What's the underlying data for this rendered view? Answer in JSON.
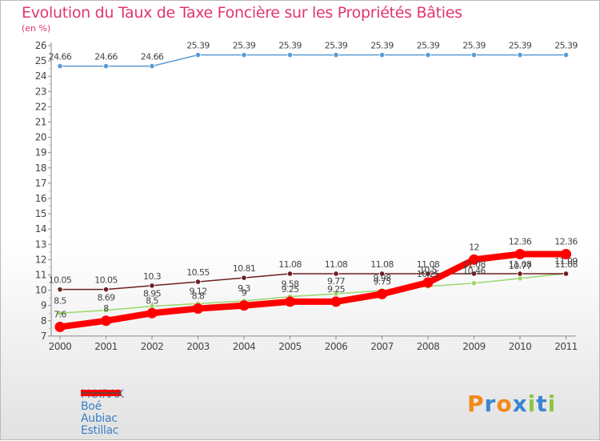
{
  "chart_data": {
    "type": "line",
    "title": "Evolution du Taux de Taxe Foncière sur les Propriétés Bâties",
    "ylabel": "(en %)",
    "xlabel": "",
    "categories": [
      "2000",
      "2001",
      "2002",
      "2003",
      "2004",
      "2005",
      "2006",
      "2007",
      "2008",
      "2009",
      "2010",
      "2011"
    ],
    "ylim": [
      7,
      26
    ],
    "yticks": [
      "7",
      "8",
      "9",
      "10",
      "11",
      "12",
      "13",
      "14",
      "15",
      "16",
      "17",
      "18",
      "19",
      "20",
      "21",
      "22",
      "23",
      "24",
      "25",
      "26"
    ],
    "grid": false,
    "legend_position": "bottom-left",
    "series": [
      {
        "name": "MOIRAX",
        "color": "#ff0000",
        "values": [
          7.6,
          8.0,
          8.5,
          8.8,
          9.0,
          9.25,
          9.25,
          9.75,
          10.5,
          12.0,
          12.36,
          12.36
        ],
        "labels": [
          "7.6",
          "8",
          "8.5",
          "8.8",
          "9",
          "9.25",
          "9.25",
          "9.75",
          "10.5",
          "12",
          "12.36",
          "12.36"
        ]
      },
      {
        "name": "Boé",
        "color": "#5b9bd5",
        "values": [
          24.66,
          24.66,
          24.66,
          25.39,
          25.39,
          25.39,
          25.39,
          25.39,
          25.39,
          25.39,
          25.39,
          25.39
        ],
        "labels": [
          "24.66",
          "24.66",
          "24.66",
          "25.39",
          "25.39",
          "25.39",
          "25.39",
          "25.39",
          "25.39",
          "25.39",
          "25.39",
          "25.39"
        ]
      },
      {
        "name": "Aubiac",
        "color": "#9ad76a",
        "values": [
          8.5,
          8.69,
          8.95,
          9.12,
          9.3,
          9.58,
          9.77,
          9.98,
          10.25,
          10.46,
          10.77,
          11.09
        ],
        "labels": [
          "8.5",
          "8.69",
          "8.95",
          "9.12",
          "9.3",
          "9.58",
          "9.77",
          "9.98",
          "10.25",
          "10.46",
          "10.77",
          "11.09"
        ]
      },
      {
        "name": "Estillac",
        "color": "#6e1f1f",
        "values": [
          10.05,
          10.05,
          10.3,
          10.55,
          10.81,
          11.08,
          11.08,
          11.08,
          11.08,
          11.08,
          11.08,
          11.08
        ],
        "labels": [
          "10.05",
          "10.05",
          "10.3",
          "10.55",
          "10.81",
          "11.08",
          "11.08",
          "11.08",
          "11.08",
          "11.08",
          "11.08",
          "11.08"
        ]
      }
    ]
  },
  "logo": {
    "text": "Proxiti",
    "letters": [
      "P",
      "r",
      "o",
      "x",
      "i",
      "t",
      "i"
    ],
    "colors": [
      "#f08a1c",
      "#3a86d0",
      "#f08a1c",
      "#3a86d0",
      "#8dc63f",
      "#3a86d0",
      "#8dc63f"
    ]
  }
}
